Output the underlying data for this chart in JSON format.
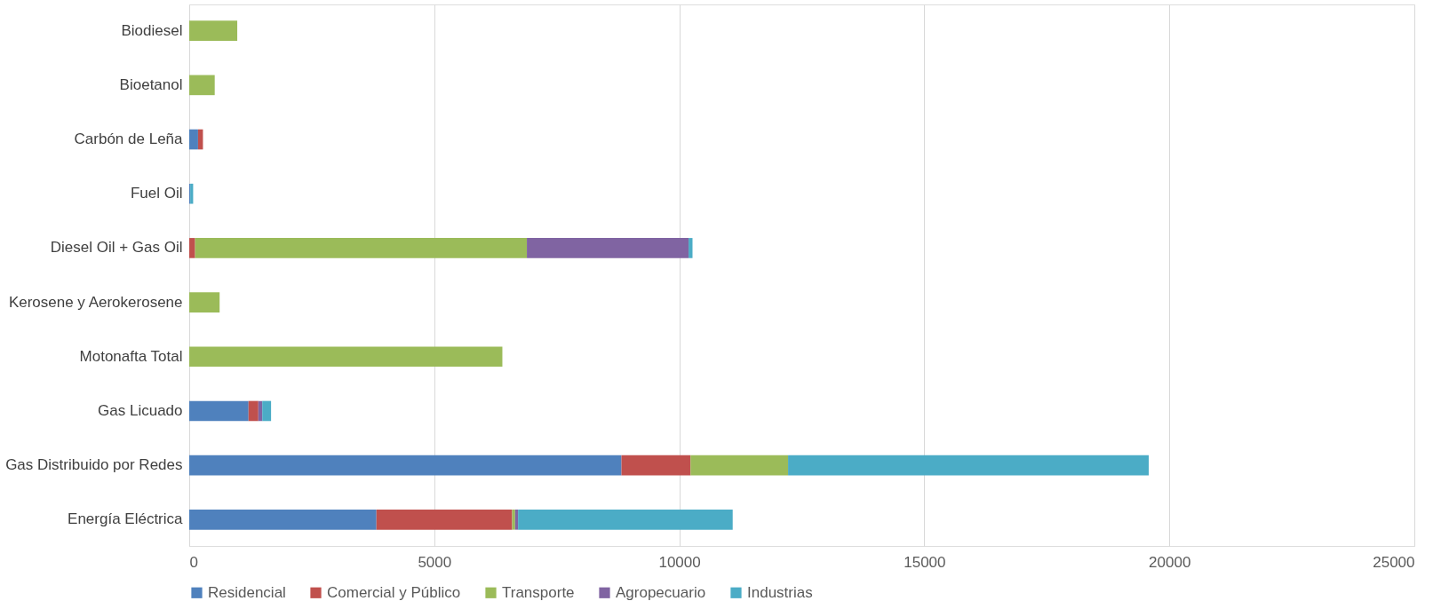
{
  "chart_data": {
    "type": "bar",
    "orientation": "horizontal",
    "stacked": true,
    "categories": [
      "Biodiesel",
      "Bioetanol",
      "Carbón de Leña",
      "Fuel Oil",
      "Diesel Oil + Gas Oil",
      "Kerosene y Aerokerosene",
      "Motonafta Total",
      "Gas Licuado",
      "Gas Distribuido por Redes",
      "Energía Eléctrica"
    ],
    "series": [
      {
        "name": "Residencial",
        "color": "#4f81bd",
        "values": [
          0,
          0,
          180,
          20,
          0,
          0,
          0,
          1210,
          8820,
          3820
        ]
      },
      {
        "name": "Comercial y Público",
        "color": "#c0504d",
        "values": [
          0,
          0,
          100,
          0,
          120,
          0,
          0,
          200,
          1410,
          2770
        ]
      },
      {
        "name": "Transporte",
        "color": "#9bbb59",
        "values": [
          980,
          520,
          0,
          0,
          6770,
          620,
          6390,
          0,
          1990,
          60
        ]
      },
      {
        "name": "Agropecuario",
        "color": "#8064a2",
        "values": [
          0,
          0,
          0,
          0,
          3300,
          0,
          0,
          80,
          0,
          60
        ]
      },
      {
        "name": "Industrias",
        "color": "#4bacc6",
        "values": [
          0,
          0,
          0,
          60,
          80,
          0,
          0,
          180,
          7360,
          4380
        ]
      }
    ],
    "xlim": [
      0,
      25000
    ],
    "xticks": [
      0,
      5000,
      10000,
      15000,
      20000,
      25000
    ],
    "grid": "x",
    "legend": "bottom"
  }
}
